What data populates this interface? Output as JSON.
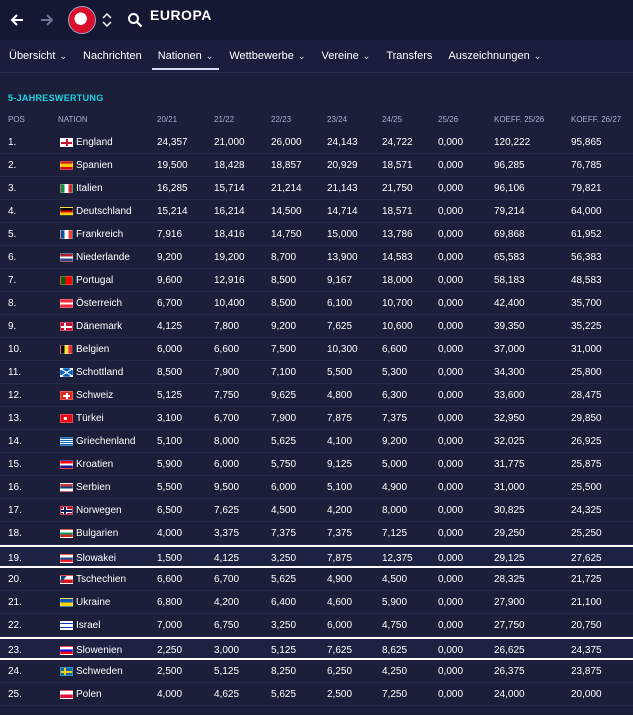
{
  "header": {
    "title": "EUROPA"
  },
  "tabs": [
    {
      "label": "Übersicht",
      "chevron": true
    },
    {
      "label": "Nachrichten",
      "chevron": false
    },
    {
      "label": "Nationen",
      "chevron": true
    },
    {
      "label": "Wettbewerbe",
      "chevron": true
    },
    {
      "label": "Vereine",
      "chevron": true
    },
    {
      "label": "Transfers",
      "chevron": false
    },
    {
      "label": "Auszeichnungen",
      "chevron": true
    }
  ],
  "section_title": "5-JAHRESWERTUNG",
  "table": {
    "headers": [
      "POS",
      "NATION",
      "20/21",
      "21/22",
      "22/23",
      "23/24",
      "24/25",
      "25/26",
      "KOEFF. 25/26",
      "KOEFF. 26/27"
    ],
    "rows": [
      {
        "pos": "1.",
        "nation": "England",
        "flag": "england",
        "v": [
          "24,357",
          "21,000",
          "26,000",
          "24,143",
          "24,722",
          "0,000"
        ],
        "k1": "120,222",
        "k2": "95,865",
        "hl": false
      },
      {
        "pos": "2.",
        "nation": "Spanien",
        "flag": "spain",
        "v": [
          "19,500",
          "18,428",
          "18,857",
          "20,929",
          "18,571",
          "0,000"
        ],
        "k1": "96,285",
        "k2": "76,785",
        "hl": false
      },
      {
        "pos": "3.",
        "nation": "Italien",
        "flag": "italy",
        "v": [
          "16,285",
          "15,714",
          "21,214",
          "21,143",
          "21,750",
          "0,000"
        ],
        "k1": "96,106",
        "k2": "79,821",
        "hl": false
      },
      {
        "pos": "4.",
        "nation": "Deutschland",
        "flag": "germany",
        "v": [
          "15,214",
          "16,214",
          "14,500",
          "14,714",
          "18,571",
          "0,000"
        ],
        "k1": "79,214",
        "k2": "64,000",
        "hl": false
      },
      {
        "pos": "5.",
        "nation": "Frankreich",
        "flag": "france",
        "v": [
          "7,916",
          "18,416",
          "14,750",
          "15,000",
          "13,786",
          "0,000"
        ],
        "k1": "69,868",
        "k2": "61,952",
        "hl": false
      },
      {
        "pos": "6.",
        "nation": "Niederlande",
        "flag": "netherlands",
        "v": [
          "9,200",
          "19,200",
          "8,700",
          "13,900",
          "14,583",
          "0,000"
        ],
        "k1": "65,583",
        "k2": "56,383",
        "hl": false
      },
      {
        "pos": "7.",
        "nation": "Portugal",
        "flag": "portugal",
        "v": [
          "9,600",
          "12,916",
          "8,500",
          "9,167",
          "18,000",
          "0,000"
        ],
        "k1": "58,183",
        "k2": "48,583",
        "hl": false
      },
      {
        "pos": "8.",
        "nation": "Österreich",
        "flag": "austria",
        "v": [
          "6,700",
          "10,400",
          "8,500",
          "6,100",
          "10,700",
          "0,000"
        ],
        "k1": "42,400",
        "k2": "35,700",
        "hl": false
      },
      {
        "pos": "9.",
        "nation": "Dänemark",
        "flag": "denmark",
        "v": [
          "4,125",
          "7,800",
          "9,200",
          "7,625",
          "10,600",
          "0,000"
        ],
        "k1": "39,350",
        "k2": "35,225",
        "hl": false
      },
      {
        "pos": "10.",
        "nation": "Belgien",
        "flag": "belgium",
        "v": [
          "6,000",
          "6,600",
          "7,500",
          "10,300",
          "6,600",
          "0,000"
        ],
        "k1": "37,000",
        "k2": "31,000",
        "hl": false
      },
      {
        "pos": "11.",
        "nation": "Schottland",
        "flag": "scotland",
        "v": [
          "8,500",
          "7,900",
          "7,100",
          "5,500",
          "5,300",
          "0,000"
        ],
        "k1": "34,300",
        "k2": "25,800",
        "hl": false
      },
      {
        "pos": "12.",
        "nation": "Schweiz",
        "flag": "switzerland",
        "v": [
          "5,125",
          "7,750",
          "9,625",
          "4,800",
          "6,300",
          "0,000"
        ],
        "k1": "33,600",
        "k2": "28,475",
        "hl": false
      },
      {
        "pos": "13.",
        "nation": "Türkei",
        "flag": "turkey",
        "v": [
          "3,100",
          "6,700",
          "7,900",
          "7,875",
          "7,375",
          "0,000"
        ],
        "k1": "32,950",
        "k2": "29,850",
        "hl": false
      },
      {
        "pos": "14.",
        "nation": "Griechenland",
        "flag": "greece",
        "v": [
          "5,100",
          "8,000",
          "5,625",
          "4,100",
          "9,200",
          "0,000"
        ],
        "k1": "32,025",
        "k2": "26,925",
        "hl": false
      },
      {
        "pos": "15.",
        "nation": "Kroatien",
        "flag": "croatia",
        "v": [
          "5,900",
          "6,000",
          "5,750",
          "9,125",
          "5,000",
          "0,000"
        ],
        "k1": "31,775",
        "k2": "25,875",
        "hl": false
      },
      {
        "pos": "16.",
        "nation": "Serbien",
        "flag": "serbia",
        "v": [
          "5,500",
          "9,500",
          "6,000",
          "5,100",
          "4,900",
          "0,000"
        ],
        "k1": "31,000",
        "k2": "25,500",
        "hl": false
      },
      {
        "pos": "17.",
        "nation": "Norwegen",
        "flag": "norway",
        "v": [
          "6,500",
          "7,625",
          "4,500",
          "4,200",
          "8,000",
          "0,000"
        ],
        "k1": "30,825",
        "k2": "24,325",
        "hl": false
      },
      {
        "pos": "18.",
        "nation": "Bulgarien",
        "flag": "bulgaria",
        "v": [
          "4,000",
          "3,375",
          "7,375",
          "7,375",
          "7,125",
          "0,000"
        ],
        "k1": "29,250",
        "k2": "25,250",
        "hl": false
      },
      {
        "pos": "19.",
        "nation": "Slowakei",
        "flag": "slovakia",
        "v": [
          "1,500",
          "4,125",
          "3,250",
          "7,875",
          "12,375",
          "0,000"
        ],
        "k1": "29,125",
        "k2": "27,625",
        "hl": true
      },
      {
        "pos": "20.",
        "nation": "Tschechien",
        "flag": "czech",
        "v": [
          "6,600",
          "6,700",
          "5,625",
          "4,900",
          "4,500",
          "0,000"
        ],
        "k1": "28,325",
        "k2": "21,725",
        "hl": false
      },
      {
        "pos": "21.",
        "nation": "Ukraine",
        "flag": "ukraine",
        "v": [
          "6,800",
          "4,200",
          "6,400",
          "4,600",
          "5,900",
          "0,000"
        ],
        "k1": "27,900",
        "k2": "21,100",
        "hl": false
      },
      {
        "pos": "22.",
        "nation": "Israel",
        "flag": "israel",
        "v": [
          "7,000",
          "6,750",
          "3,250",
          "6,000",
          "4,750",
          "0,000"
        ],
        "k1": "27,750",
        "k2": "20,750",
        "hl": false
      },
      {
        "pos": "23.",
        "nation": "Slowenien",
        "flag": "slovenia",
        "v": [
          "2,250",
          "3,000",
          "5,125",
          "7,625",
          "8,625",
          "0,000"
        ],
        "k1": "26,625",
        "k2": "24,375",
        "hl": true
      },
      {
        "pos": "24.",
        "nation": "Schweden",
        "flag": "sweden",
        "v": [
          "2,500",
          "5,125",
          "8,250",
          "6,250",
          "4,250",
          "0,000"
        ],
        "k1": "26,375",
        "k2": "23,875",
        "hl": false
      },
      {
        "pos": "25.",
        "nation": "Polen",
        "flag": "poland",
        "v": [
          "4,000",
          "4,625",
          "5,625",
          "2,500",
          "7,250",
          "0,000"
        ],
        "k1": "24,000",
        "k2": "20,000",
        "hl": false
      }
    ]
  },
  "colors": {
    "background": "#1b1f3a",
    "accent": "#1fd3e6",
    "highlight_border": "#ffffff"
  }
}
